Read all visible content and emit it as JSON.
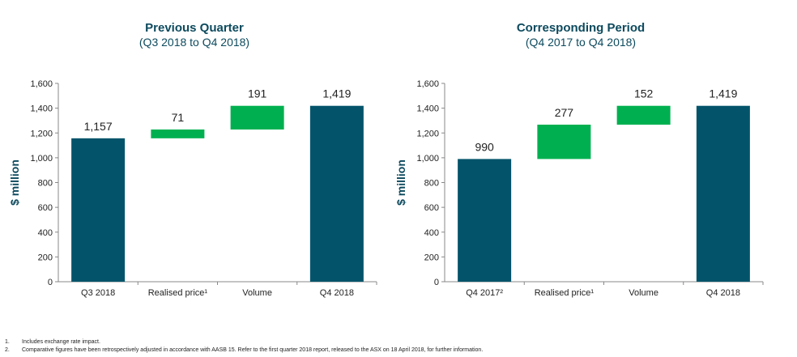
{
  "colors": {
    "base_bar": "#03546b",
    "increase_bar": "#00b050",
    "axis": "#888888",
    "text": "#0d4a5e"
  },
  "chart_data": [
    {
      "type": "bar",
      "subtype": "waterfall",
      "title": "Previous Quarter",
      "subtitle": "(Q3 2018 to Q4 2018)",
      "ylabel": "$ million",
      "xlabel": "",
      "ylim": [
        0,
        1600
      ],
      "yticks": [
        "0",
        "200",
        "400",
        "600",
        "800",
        "1,000",
        "1,200",
        "1,400",
        "1,600"
      ],
      "grid": false,
      "categories": [
        "Q3 2018",
        "Realised price¹",
        "Volume",
        "Q4 2018"
      ],
      "bars": [
        {
          "kind": "total",
          "start": 0,
          "end": 1157,
          "label": "1,157"
        },
        {
          "kind": "increase",
          "start": 1157,
          "end": 1228,
          "label": "71"
        },
        {
          "kind": "increase",
          "start": 1228,
          "end": 1419,
          "label": "191"
        },
        {
          "kind": "total",
          "start": 0,
          "end": 1419,
          "label": "1,419"
        }
      ]
    },
    {
      "type": "bar",
      "subtype": "waterfall",
      "title": "Corresponding Period",
      "subtitle": "(Q4 2017 to Q4 2018)",
      "ylabel": "$ million",
      "xlabel": "",
      "ylim": [
        0,
        1600
      ],
      "yticks": [
        "0",
        "200",
        "400",
        "600",
        "800",
        "1,000",
        "1,200",
        "1,400",
        "1,600"
      ],
      "grid": false,
      "categories": [
        "Q4 2017²",
        "Realised price¹",
        "Volume",
        "Q4 2018"
      ],
      "bars": [
        {
          "kind": "total",
          "start": 0,
          "end": 990,
          "label": "990"
        },
        {
          "kind": "increase",
          "start": 990,
          "end": 1267,
          "label": "277"
        },
        {
          "kind": "increase",
          "start": 1267,
          "end": 1419,
          "label": "152"
        },
        {
          "kind": "total",
          "start": 0,
          "end": 1419,
          "label": "1,419"
        }
      ]
    }
  ],
  "footnotes": [
    {
      "num": "1.",
      "text": "Includes exchange rate impact."
    },
    {
      "num": "2.",
      "text": "Comparative figures have been retrospectively adjusted in accordance with AASB 15. Refer to the first quarter 2018 report, released to the ASX on 18 April 2018, for further information."
    }
  ]
}
